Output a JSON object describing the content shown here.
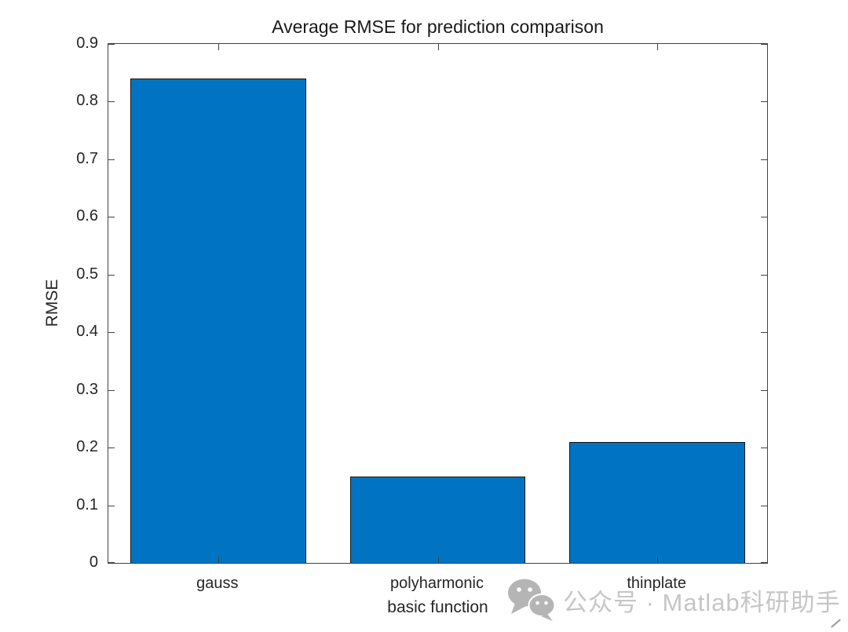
{
  "chart_data": {
    "type": "bar",
    "title": "Average RMSE for prediction comparison",
    "xlabel": "basic function",
    "ylabel": "RMSE",
    "categories": [
      "gauss",
      "polyharmonic",
      "thinplate"
    ],
    "values": [
      0.84,
      0.15,
      0.21
    ],
    "ylim": [
      0,
      0.9
    ],
    "yticks": [
      0,
      0.1,
      0.2,
      0.3,
      0.4,
      0.5,
      0.6,
      0.7,
      0.8,
      0.9
    ],
    "ytick_labels": [
      "0",
      "0.1",
      "0.2",
      "0.3",
      "0.4",
      "0.5",
      "0.6",
      "0.7",
      "0.8",
      "0.9"
    ],
    "bar_width_fraction": 0.8,
    "grid": false,
    "legend": null,
    "box": true,
    "tick_direction": "in",
    "bar_color": "#0074c2",
    "bar_edge_color": "#141414",
    "axis_color": "#424242",
    "text_color": "#262626"
  },
  "watermark": {
    "icon": "wechat-icon",
    "icon_color": "#b5b5b5",
    "text": "公众号 · Matlab科研助手",
    "text_color": "#c6c6c6"
  }
}
